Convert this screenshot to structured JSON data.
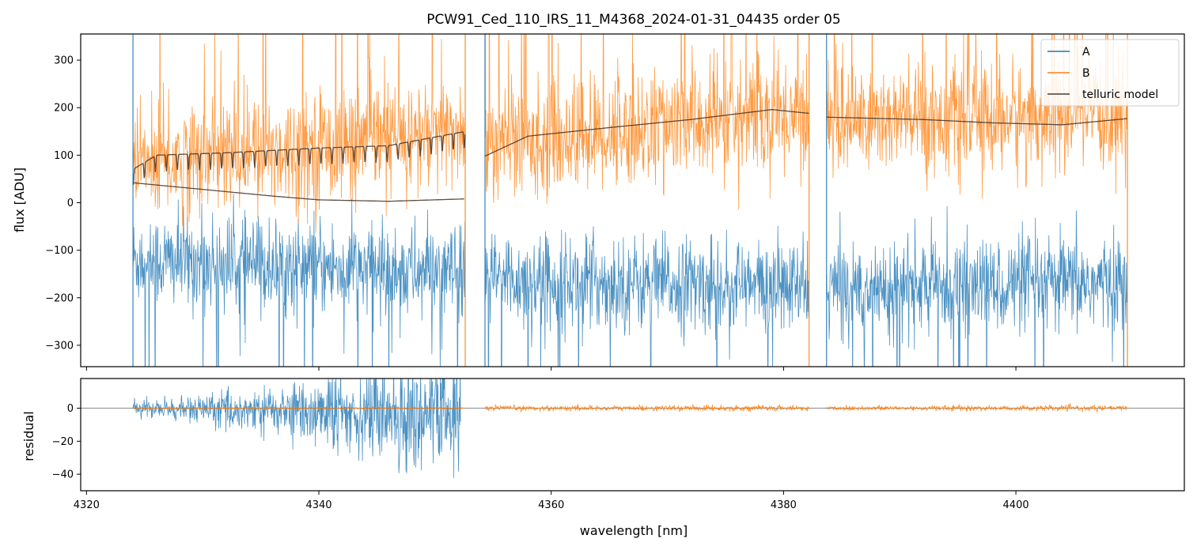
{
  "chart_data": [
    {
      "panel": "top",
      "type": "line",
      "title": "PCW91_Ced_110_IRS_11_M4368_2024-01-31_04435  order 05",
      "xlabel": "",
      "ylabel": "flux [ADU]",
      "xlim": [
        4319.5,
        4414.5
      ],
      "ylim": [
        -345,
        355
      ],
      "yticks": [
        -300,
        -200,
        -100,
        0,
        100,
        200,
        300
      ],
      "ytick_labels": [
        "−300",
        "−200",
        "−100",
        "0",
        "100",
        "200",
        "300"
      ],
      "xticks": [
        4320,
        4340,
        4360,
        4380,
        4400
      ],
      "segments": [
        [
          4324.0,
          4352.6
        ],
        [
          4354.3,
          4382.2
        ],
        [
          4383.7,
          4409.6
        ]
      ],
      "legend": {
        "position": "top-right",
        "entries": [
          {
            "label": "A",
            "color": "#1f77b4"
          },
          {
            "label": "B",
            "color": "#ff7f0e"
          },
          {
            "label": "telluric model",
            "color": "#4d3b2e"
          }
        ]
      },
      "series": [
        {
          "name": "A",
          "color": "#1f77b4",
          "description": "noisy spectrum",
          "level_points": [
            [
              4324,
              -120
            ],
            [
              4352.6,
              -150
            ],
            [
              4354.3,
              -160
            ],
            [
              4382.2,
              -180
            ],
            [
              4383.7,
              -180
            ],
            [
              4409.6,
              -170
            ]
          ],
          "noise_amplitude": 90
        },
        {
          "name": "B",
          "color": "#ff7f0e",
          "description": "noisy spectrum",
          "level_points": [
            [
              4324,
              80
            ],
            [
              4352.6,
              150
            ],
            [
              4354.3,
              120
            ],
            [
              4382.2,
              190
            ],
            [
              4383.7,
              175
            ],
            [
              4409.6,
              180
            ]
          ],
          "noise_amplitude": 110
        },
        {
          "name": "telluric model (A)",
          "color": "#4d3b2e",
          "points": [
            [
              4324,
              42
            ],
            [
              4330,
              28
            ],
            [
              4336,
              14
            ],
            [
              4340,
              6
            ],
            [
              4346,
              3
            ],
            [
              4352.6,
              8
            ]
          ]
        },
        {
          "name": "telluric model (B)",
          "color": "#4d3b2e",
          "points": [
            [
              4324,
              70
            ],
            [
              4326,
              100
            ],
            [
              4332,
              105
            ],
            [
              4340,
              115
            ],
            [
              4346,
              120
            ],
            [
              4352.6,
              150
            ],
            [
              4354.3,
              98
            ],
            [
              4358,
              140
            ],
            [
              4365,
              158
            ],
            [
              4372,
              175
            ],
            [
              4379,
              196
            ],
            [
              4382.2,
              188
            ],
            [
              4383.7,
              180
            ],
            [
              4392,
              175
            ],
            [
              4398,
              168
            ],
            [
              4404,
              164
            ],
            [
              4409.6,
              177
            ]
          ]
        }
      ]
    },
    {
      "panel": "bottom",
      "type": "line",
      "title": "",
      "xlabel": "wavelength [nm]",
      "ylabel": "residual",
      "xlim": [
        4319.5,
        4414.5
      ],
      "ylim": [
        -50,
        18
      ],
      "yticks": [
        -40,
        -20,
        0
      ],
      "ytick_labels": [
        "−40",
        "−20",
        "0"
      ],
      "xticks": [
        4320,
        4340,
        4360,
        4380,
        4400
      ],
      "xtick_labels": [
        "4320",
        "4340",
        "4360",
        "4380",
        "4400"
      ],
      "series": [
        {
          "name": "A residual",
          "color": "#1f77b4",
          "range": [
            4324.0,
            4352.2
          ],
          "description": "large scatter, growing with wavelength"
        },
        {
          "name": "B residual",
          "color": "#ff7f0e",
          "ranges": [
            [
              4324.0,
              4352.6
            ],
            [
              4354.3,
              4382.2
            ],
            [
              4383.7,
              4409.6
            ]
          ],
          "description": "near zero, small scatter"
        }
      ],
      "reference_line": 0
    }
  ]
}
